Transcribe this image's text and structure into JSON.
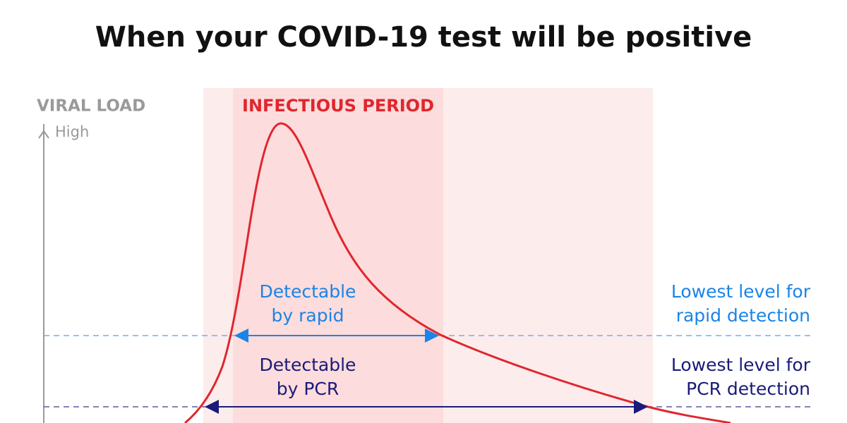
{
  "header": {
    "title": "When your COVID-19 test will be positive"
  },
  "y_axis": {
    "label": "VIRAL LOAD",
    "high": "High"
  },
  "period": {
    "label": "INFECTIOUS PERIOD"
  },
  "rapid": {
    "detectable": [
      "Detectable",
      "by rapid"
    ],
    "threshold": [
      "Lowest level for",
      "rapid detection"
    ]
  },
  "pcr": {
    "detectable": [
      "Detectable",
      "by PCR"
    ],
    "threshold": [
      "Lowest level for",
      "PCR detection"
    ]
  }
}
